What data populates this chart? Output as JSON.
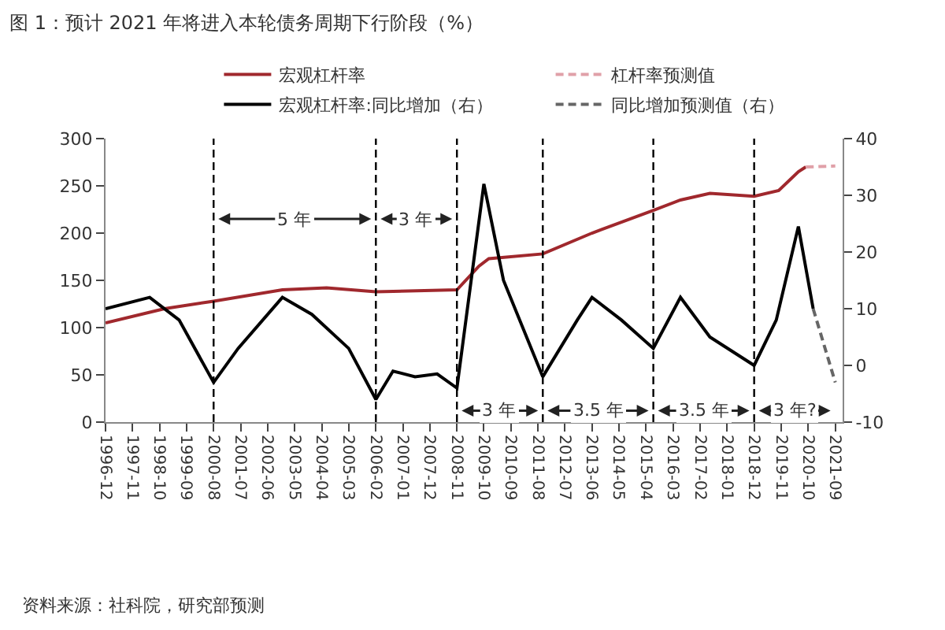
{
  "chart_data": {
    "type": "line",
    "title": "图 1：预计 2021 年将进入本轮债务周期下行阶段（%）",
    "xlim": [
      "1996-12",
      "2021-12"
    ],
    "xticks": [
      "1996-12",
      "1997-11",
      "1998-10",
      "1999-09",
      "2000-08",
      "2001-07",
      "2002-06",
      "2003-05",
      "2004-04",
      "2005-03",
      "2006-02",
      "2007-01",
      "2007-12",
      "2008-11",
      "2009-10",
      "2010-09",
      "2011-08",
      "2012-07",
      "2013-06",
      "2014-05",
      "2015-04",
      "2016-03",
      "2017-02",
      "2018-01",
      "2018-12",
      "2019-11",
      "2020-10",
      "2021-09"
    ],
    "ylim": [
      0,
      300
    ],
    "yticks": [
      0,
      50,
      100,
      150,
      200,
      250,
      300
    ],
    "y2lim": [
      -10,
      40
    ],
    "y2ticks": [
      -10,
      0,
      10,
      20,
      30,
      40
    ],
    "series": [
      {
        "name": "宏观杠杆率",
        "color": "#a0282d",
        "line_style": "solid",
        "x": [
          "1996-12",
          "1998-12",
          "2000-08",
          "2002-12",
          "2004-06",
          "2006-02",
          "2008-11",
          "2009-08",
          "2009-12",
          "2011-10",
          "2013-06",
          "2015-07",
          "2016-06",
          "2017-06",
          "2018-12",
          "2019-10",
          "2020-06",
          "2020-09"
        ],
        "values": [
          105,
          120,
          128,
          140,
          142,
          138,
          140,
          165,
          173,
          178,
          200,
          224,
          235,
          242,
          239,
          245,
          265,
          270
        ]
      },
      {
        "name": "杠杆率预测值",
        "color": "#e0a0a8",
        "line_style": "dashed",
        "x": [
          "2020-09",
          "2021-09"
        ],
        "values": [
          270,
          271
        ]
      },
      {
        "name": "宏观杠杆率:同比增加（右）",
        "color": "#000000",
        "line_style": "solid",
        "axis": "y2",
        "x": [
          "1996-12",
          "1998-06",
          "1999-06",
          "2000-08",
          "2001-06",
          "2002-12",
          "2003-12",
          "2005-03",
          "2006-02",
          "2006-09",
          "2007-06",
          "2008-03",
          "2008-11",
          "2009-10",
          "2010-06",
          "2011-10",
          "2012-12",
          "2013-06",
          "2014-06",
          "2015-07",
          "2016-06",
          "2017-06",
          "2018-12",
          "2019-09",
          "2020-06",
          "2020-12"
        ],
        "values": [
          10,
          12,
          8,
          -3,
          3,
          12,
          9,
          3,
          -6,
          -1,
          -2,
          -1.5,
          -4,
          32,
          15,
          -2,
          8,
          12,
          8,
          3,
          12,
          5,
          0,
          8,
          24.5,
          10
        ]
      },
      {
        "name": "同比增加预测值（右）",
        "color": "#666666",
        "line_style": "dashed",
        "axis": "y2",
        "x": [
          "2020-12",
          "2021-09"
        ],
        "values": [
          10,
          -3
        ]
      }
    ],
    "ref_lines": [
      {
        "axis": "x",
        "value": "2000-08",
        "color": "#000000",
        "line_style": "dashed"
      },
      {
        "axis": "x",
        "value": "2006-02",
        "color": "#000000",
        "line_style": "dashed"
      },
      {
        "axis": "x",
        "value": "2008-11",
        "color": "#000000",
        "line_style": "dashed"
      },
      {
        "axis": "x",
        "value": "2011-10",
        "color": "#000000",
        "line_style": "dashed"
      },
      {
        "axis": "x",
        "value": "2015-07",
        "color": "#000000",
        "line_style": "dashed"
      },
      {
        "axis": "x",
        "value": "2018-12",
        "color": "#000000",
        "line_style": "dashed"
      }
    ],
    "annotations": [
      {
        "text": "5 年",
        "x": "2000-08",
        "y": 215
      },
      {
        "text": "3 年",
        "x": "2006-02",
        "y": 215
      },
      {
        "text": "3 年",
        "x": "2008-11",
        "y": 12
      },
      {
        "text": "3.5 年",
        "x": "2011-10",
        "y": 12
      },
      {
        "text": "3.5 年",
        "x": "2015-07",
        "y": 12
      },
      {
        "text": "3 年?",
        "x": "2018-12",
        "y": 12
      },
      "资料来源：社科院，研究部预测"
    ],
    "legend": "top",
    "grid": false,
    "marker": "none"
  }
}
